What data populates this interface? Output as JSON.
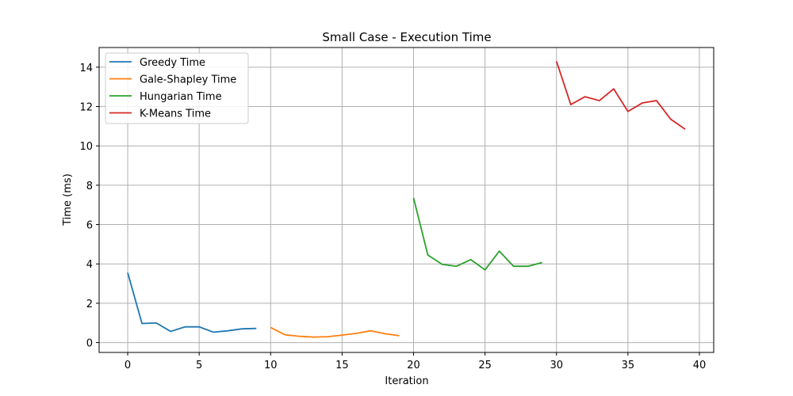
{
  "chart_data": {
    "type": "line",
    "title": "Small Case - Execution Time",
    "xlabel": "Iteration",
    "ylabel": "Time (ms)",
    "xlim": [
      -2,
      41
    ],
    "ylim": [
      -0.5,
      15
    ],
    "xticks": [
      0,
      5,
      10,
      15,
      20,
      25,
      30,
      35,
      40
    ],
    "yticks": [
      0,
      2,
      4,
      6,
      8,
      10,
      12,
      14
    ],
    "grid": true,
    "legend_position": "top-left",
    "series": [
      {
        "name": "Greedy Time",
        "color": "#1f77b4",
        "x": [
          0,
          1,
          2,
          3,
          4,
          5,
          6,
          7,
          8,
          9
        ],
        "y": [
          3.55,
          0.97,
          1.0,
          0.57,
          0.8,
          0.8,
          0.53,
          0.6,
          0.7,
          0.72
        ]
      },
      {
        "name": "Gale-Shapley Time",
        "color": "#ff7f0e",
        "x": [
          10,
          11,
          12,
          13,
          14,
          15,
          16,
          17,
          18,
          19
        ],
        "y": [
          0.77,
          0.4,
          0.32,
          0.28,
          0.3,
          0.38,
          0.47,
          0.6,
          0.45,
          0.35
        ]
      },
      {
        "name": "Hungarian Time",
        "color": "#2ca02c",
        "x": [
          20,
          21,
          22,
          23,
          24,
          25,
          26,
          27,
          28,
          29
        ],
        "y": [
          7.35,
          4.45,
          3.98,
          3.88,
          4.22,
          3.7,
          4.65,
          3.88,
          3.88,
          4.07
        ]
      },
      {
        "name": "K-Means Time",
        "color": "#d62728",
        "x": [
          30,
          31,
          32,
          33,
          34,
          35,
          36,
          37,
          38,
          39
        ],
        "y": [
          14.3,
          12.1,
          12.5,
          12.3,
          12.9,
          11.75,
          12.18,
          12.3,
          11.35,
          10.85
        ]
      }
    ]
  }
}
